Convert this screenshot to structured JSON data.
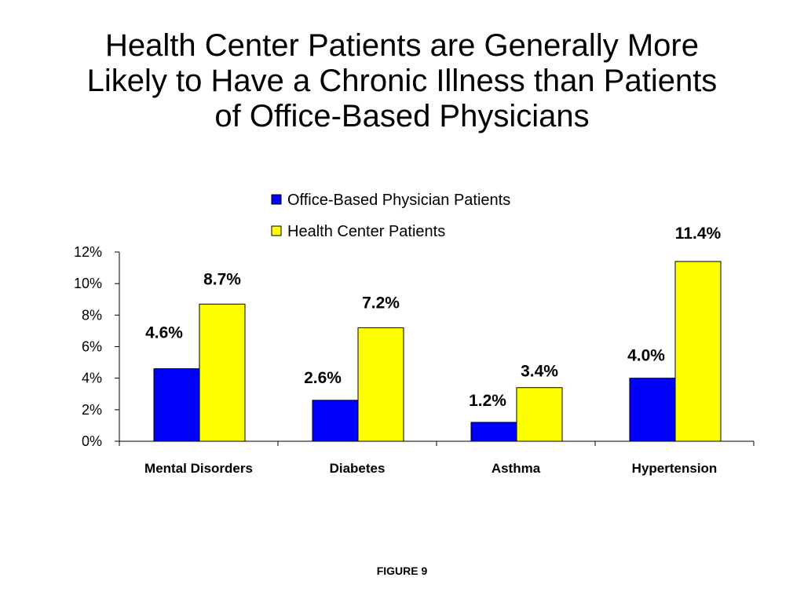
{
  "title_lines": [
    "Health Center Patients are Generally More",
    "Likely to Have a Chronic Illness than Patients",
    "of Office-Based Physicians"
  ],
  "figure_label": "FIGURE 9",
  "chart_data": {
    "type": "bar",
    "categories": [
      "Mental Disorders",
      "Diabetes",
      "Asthma",
      "Hypertension"
    ],
    "series": [
      {
        "name": "Office-Based Physician Patients",
        "values": [
          4.6,
          2.6,
          1.2,
          4.0
        ],
        "color": "#0000FF",
        "labels": [
          "4.6%",
          "2.6%",
          "1.2%",
          "4.0%"
        ]
      },
      {
        "name": "Health Center Patients",
        "values": [
          8.7,
          7.2,
          3.4,
          11.4
        ],
        "color": "#FFFF00",
        "labels": [
          "8.7%",
          "7.2%",
          "3.4%",
          "11.4%"
        ]
      }
    ],
    "ylim": [
      0,
      12
    ],
    "yticks": [
      0,
      2,
      4,
      6,
      8,
      10,
      12
    ],
    "ytick_labels": [
      "0%",
      "2%",
      "4%",
      "6%",
      "8%",
      "10%",
      "12%"
    ],
    "legend_position": "top-right",
    "grid": false
  }
}
